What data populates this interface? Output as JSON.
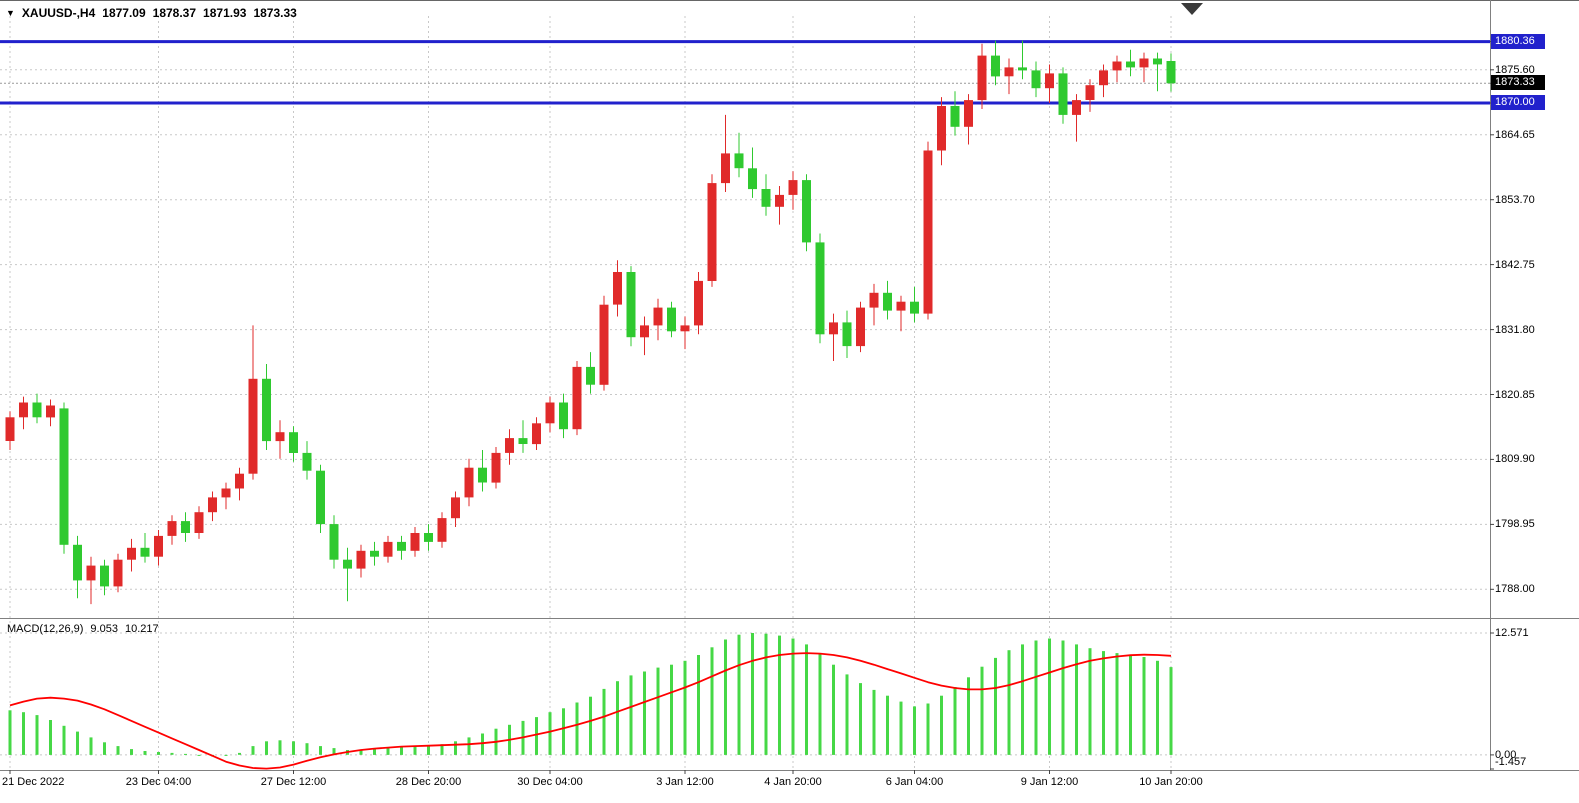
{
  "header": {
    "dropdown_icon": "▼",
    "symbol_period": "XAUUSD-,H4",
    "open": "1877.09",
    "high": "1878.37",
    "low": "1871.93",
    "close": "1873.33"
  },
  "colors": {
    "background": "#ffffff",
    "up_candle": "#e02a2a",
    "down_candle": "#2fc92f",
    "macd_hist": "#46d846",
    "macd_signal": "#ff0000",
    "hline": "#2121cc",
    "hline_label_bg": "#2121cc",
    "current_price_bg": "#000000",
    "grid": "#c8c8c8",
    "separator": "#808080",
    "axis_text": "#000000",
    "shift_marker": "#3a3a3a"
  },
  "chart_data": {
    "type": "candlestick",
    "symbol": "XAUUSD-",
    "timeframe": "H4",
    "price_axis": {
      "range": {
        "top": 1884.0,
        "bottom": 1783.5
      },
      "gridlines": [
        1875.6,
        1864.65,
        1853.7,
        1842.75,
        1831.8,
        1820.85,
        1809.9,
        1798.95,
        1788
      ],
      "labels": [
        {
          "text": "1880.36",
          "price": 1880.36,
          "style": "blue"
        },
        {
          "text": "1875.60",
          "price": 1875.6,
          "style": "plain"
        },
        {
          "text": "1873.33",
          "price": 1873.33,
          "style": "black"
        },
        {
          "text": "1870.00",
          "price": 1870,
          "style": "blue"
        },
        {
          "text": "1864.65",
          "price": 1864.65,
          "style": "plain"
        },
        {
          "text": "1853.70",
          "price": 1853.7,
          "style": "plain"
        },
        {
          "text": "1842.75",
          "price": 1842.75,
          "style": "plain"
        },
        {
          "text": "1831.80",
          "price": 1831.8,
          "style": "plain"
        },
        {
          "text": "1820.85",
          "price": 1820.85,
          "style": "plain"
        },
        {
          "text": "1809.90",
          "price": 1809.9,
          "style": "plain"
        },
        {
          "text": "1798.95",
          "price": 1798.95,
          "style": "plain"
        },
        {
          "text": "1788.00",
          "price": 1788,
          "style": "plain"
        }
      ]
    },
    "hlines": [
      {
        "price": 1880.36,
        "label": "1880.36"
      },
      {
        "price": 1870,
        "label": "1870.00"
      }
    ],
    "current_price": {
      "value": 1873.33,
      "label": "1873.33"
    },
    "time_labels": [
      {
        "index": 0,
        "text": "21 Dec 2022"
      },
      {
        "index": 11,
        "text": "23 Dec 04:00"
      },
      {
        "index": 21,
        "text": "27 Dec 12:00"
      },
      {
        "index": 31,
        "text": "28 Dec 20:00"
      },
      {
        "index": 40,
        "text": "30 Dec 04:00"
      },
      {
        "index": 50,
        "text": "3 Jan 12:00"
      },
      {
        "index": 58,
        "text": "4 Jan 20:00"
      },
      {
        "index": 67,
        "text": "6 Jan 04:00"
      },
      {
        "index": 77,
        "text": "9 Jan 12:00"
      },
      {
        "index": 86,
        "text": "10 Jan 20:00"
      }
    ],
    "candles": [
      [
        1813,
        1818,
        1811.5,
        1817
      ],
      [
        1817,
        1820.5,
        1815,
        1819.5
      ],
      [
        1819.5,
        1821,
        1816,
        1817
      ],
      [
        1817,
        1820,
        1815.5,
        1819
      ],
      [
        1818.5,
        1819.5,
        1794,
        1795.5
      ],
      [
        1795.5,
        1797,
        1786.5,
        1789.5
      ],
      [
        1789.5,
        1793.5,
        1785.5,
        1792
      ],
      [
        1792,
        1793,
        1787,
        1788.5
      ],
      [
        1788.5,
        1794,
        1787.5,
        1793
      ],
      [
        1793,
        1796.5,
        1791,
        1795
      ],
      [
        1795,
        1797.5,
        1792.5,
        1793.5
      ],
      [
        1793.5,
        1798,
        1792,
        1797
      ],
      [
        1797,
        1800.5,
        1795.5,
        1799.5
      ],
      [
        1799.5,
        1801,
        1796,
        1797.5
      ],
      [
        1797.5,
        1802,
        1796.5,
        1801
      ],
      [
        1801,
        1804.5,
        1799.5,
        1803.5
      ],
      [
        1803.5,
        1806,
        1801.5,
        1805
      ],
      [
        1805,
        1808.5,
        1803,
        1807.5
      ],
      [
        1807.5,
        1832.5,
        1806.5,
        1823.5
      ],
      [
        1823.5,
        1826,
        1811.5,
        1813
      ],
      [
        1813,
        1816.5,
        1810,
        1814.5
      ],
      [
        1814.5,
        1815.5,
        1809.5,
        1811
      ],
      [
        1811,
        1813,
        1806.5,
        1808
      ],
      [
        1808,
        1809,
        1797.5,
        1799
      ],
      [
        1799,
        1800.5,
        1791.5,
        1793
      ],
      [
        1793,
        1795,
        1786,
        1791.5
      ],
      [
        1791.5,
        1795.5,
        1790,
        1794.5
      ],
      [
        1794.5,
        1796,
        1792,
        1793.5
      ],
      [
        1793.5,
        1797,
        1792.5,
        1796
      ],
      [
        1796,
        1797,
        1793,
        1794.5
      ],
      [
        1794.5,
        1798.5,
        1793.5,
        1797.5
      ],
      [
        1797.5,
        1799,
        1794.5,
        1796
      ],
      [
        1796,
        1801,
        1795,
        1800
      ],
      [
        1800,
        1804.5,
        1798.5,
        1803.5
      ],
      [
        1803.5,
        1810,
        1802,
        1808.5
      ],
      [
        1808.5,
        1811.5,
        1804.5,
        1806
      ],
      [
        1806,
        1812,
        1805,
        1811
      ],
      [
        1811,
        1815,
        1809,
        1813.5
      ],
      [
        1813.5,
        1816.5,
        1811,
        1812.5
      ],
      [
        1812.5,
        1817,
        1811.5,
        1816
      ],
      [
        1816,
        1820.5,
        1814.5,
        1819.5
      ],
      [
        1819.5,
        1821,
        1813.5,
        1815
      ],
      [
        1815,
        1826.5,
        1814,
        1825.5
      ],
      [
        1825.5,
        1828,
        1821,
        1822.5
      ],
      [
        1822.5,
        1837.5,
        1821.5,
        1836
      ],
      [
        1836,
        1843.5,
        1834,
        1841.5
      ],
      [
        1841.5,
        1842.5,
        1829,
        1830.5
      ],
      [
        1830.5,
        1834,
        1827.5,
        1832.5
      ],
      [
        1832.5,
        1837,
        1830,
        1835.5
      ],
      [
        1835.5,
        1836.5,
        1830.5,
        1831.5
      ],
      [
        1831.5,
        1834,
        1828.5,
        1832.5
      ],
      [
        1832.5,
        1841.5,
        1831,
        1840
      ],
      [
        1840,
        1858,
        1839,
        1856.5
      ],
      [
        1856.5,
        1868,
        1855,
        1861.5
      ],
      [
        1861.5,
        1865,
        1857.5,
        1859
      ],
      [
        1859,
        1862.5,
        1854,
        1855.5
      ],
      [
        1855.5,
        1858,
        1851,
        1852.5
      ],
      [
        1852.5,
        1856,
        1849.5,
        1854.5
      ],
      [
        1854.5,
        1858.5,
        1852,
        1857
      ],
      [
        1857,
        1858,
        1845,
        1846.5
      ],
      [
        1846.5,
        1848,
        1829.5,
        1831
      ],
      [
        1831,
        1834.5,
        1826.5,
        1833
      ],
      [
        1833,
        1835,
        1827,
        1829
      ],
      [
        1829,
        1836.5,
        1828,
        1835.5
      ],
      [
        1835.5,
        1839.5,
        1832.5,
        1838
      ],
      [
        1838,
        1840,
        1833.5,
        1835
      ],
      [
        1835,
        1837.5,
        1831.5,
        1836.5
      ],
      [
        1836.5,
        1839,
        1833,
        1834.5
      ],
      [
        1834.5,
        1863.5,
        1833.5,
        1862
      ],
      [
        1862,
        1871,
        1859.5,
        1869.5
      ],
      [
        1869.5,
        1872,
        1864.5,
        1866
      ],
      [
        1866,
        1871.5,
        1863,
        1870.5
      ],
      [
        1870.5,
        1880,
        1869,
        1878
      ],
      [
        1878,
        1880.5,
        1873,
        1874.5
      ],
      [
        1874.5,
        1877.5,
        1871.5,
        1876
      ],
      [
        1876,
        1880.5,
        1874,
        1875.5
      ],
      [
        1875.5,
        1877,
        1871,
        1872.5
      ],
      [
        1872.5,
        1876.5,
        1870,
        1875
      ],
      [
        1875,
        1876,
        1866.5,
        1868
      ],
      [
        1868,
        1871.5,
        1863.5,
        1870.5
      ],
      [
        1870.5,
        1874,
        1868.5,
        1873
      ],
      [
        1873,
        1876.5,
        1871,
        1875.5
      ],
      [
        1875.5,
        1878,
        1873.5,
        1877
      ],
      [
        1877,
        1879,
        1874.5,
        1876
      ],
      [
        1876,
        1878.5,
        1873.5,
        1877.5
      ],
      [
        1877.5,
        1878.5,
        1872,
        1876.5
      ],
      [
        1877.09,
        1878.37,
        1871.93,
        1873.33
      ]
    ],
    "macd": {
      "name": "MACD(12,26,9)",
      "value_main": "9.053",
      "value_signal": "10.217",
      "scale": {
        "max": 12.571,
        "zero": 0,
        "min": -1.457,
        "labels": [
          {
            "text": "12.571",
            "value": 12.571
          },
          {
            "text": "0.00",
            "value": 0
          },
          {
            "text": "-1.457",
            "value": -1.457
          }
        ]
      },
      "histogram": [
        4.6,
        4.4,
        4.1,
        3.6,
        3.0,
        2.4,
        1.8,
        1.3,
        0.9,
        0.6,
        0.4,
        0.3,
        0.2,
        0.1,
        -0.1,
        -0.15,
        -0.1,
        0.2,
        0.9,
        1.4,
        1.5,
        1.4,
        1.2,
        0.9,
        0.7,
        0.5,
        0.5,
        0.6,
        0.7,
        0.8,
        0.9,
        1.0,
        1.1,
        1.4,
        1.8,
        2.2,
        2.7,
        3.1,
        3.5,
        3.9,
        4.4,
        4.8,
        5.4,
        6.0,
        6.8,
        7.6,
        8.2,
        8.6,
        9.0,
        9.3,
        9.7,
        10.3,
        11.1,
        11.9,
        12.4,
        12.57,
        12.5,
        12.3,
        12.0,
        11.4,
        10.4,
        9.3,
        8.3,
        7.4,
        6.7,
        6.1,
        5.5,
        5.0,
        5.3,
        6.1,
        7.0,
        8.0,
        9.1,
        10.0,
        10.8,
        11.4,
        11.8,
        12.0,
        11.8,
        11.4,
        11.0,
        10.7,
        10.5,
        10.3,
        10.1,
        9.7,
        9.053
      ],
      "signal": [
        5.1,
        5.5,
        5.8,
        5.9,
        5.8,
        5.6,
        5.2,
        4.7,
        4.1,
        3.5,
        2.9,
        2.3,
        1.7,
        1.1,
        0.5,
        -0.1,
        -0.7,
        -1.1,
        -1.35,
        -1.42,
        -1.3,
        -1.0,
        -0.6,
        -0.25,
        0.05,
        0.3,
        0.5,
        0.65,
        0.75,
        0.85,
        0.9,
        0.95,
        1.0,
        1.05,
        1.1,
        1.2,
        1.35,
        1.55,
        1.8,
        2.1,
        2.4,
        2.75,
        3.1,
        3.5,
        3.95,
        4.45,
        4.95,
        5.45,
        5.95,
        6.45,
        6.95,
        7.5,
        8.1,
        8.7,
        9.25,
        9.7,
        10.05,
        10.3,
        10.45,
        10.5,
        10.45,
        10.3,
        10.05,
        9.7,
        9.3,
        8.85,
        8.4,
        7.95,
        7.5,
        7.15,
        6.9,
        6.75,
        6.75,
        6.9,
        7.2,
        7.6,
        8.05,
        8.5,
        8.95,
        9.35,
        9.7,
        9.95,
        10.15,
        10.28,
        10.33,
        10.3,
        10.217
      ]
    }
  }
}
